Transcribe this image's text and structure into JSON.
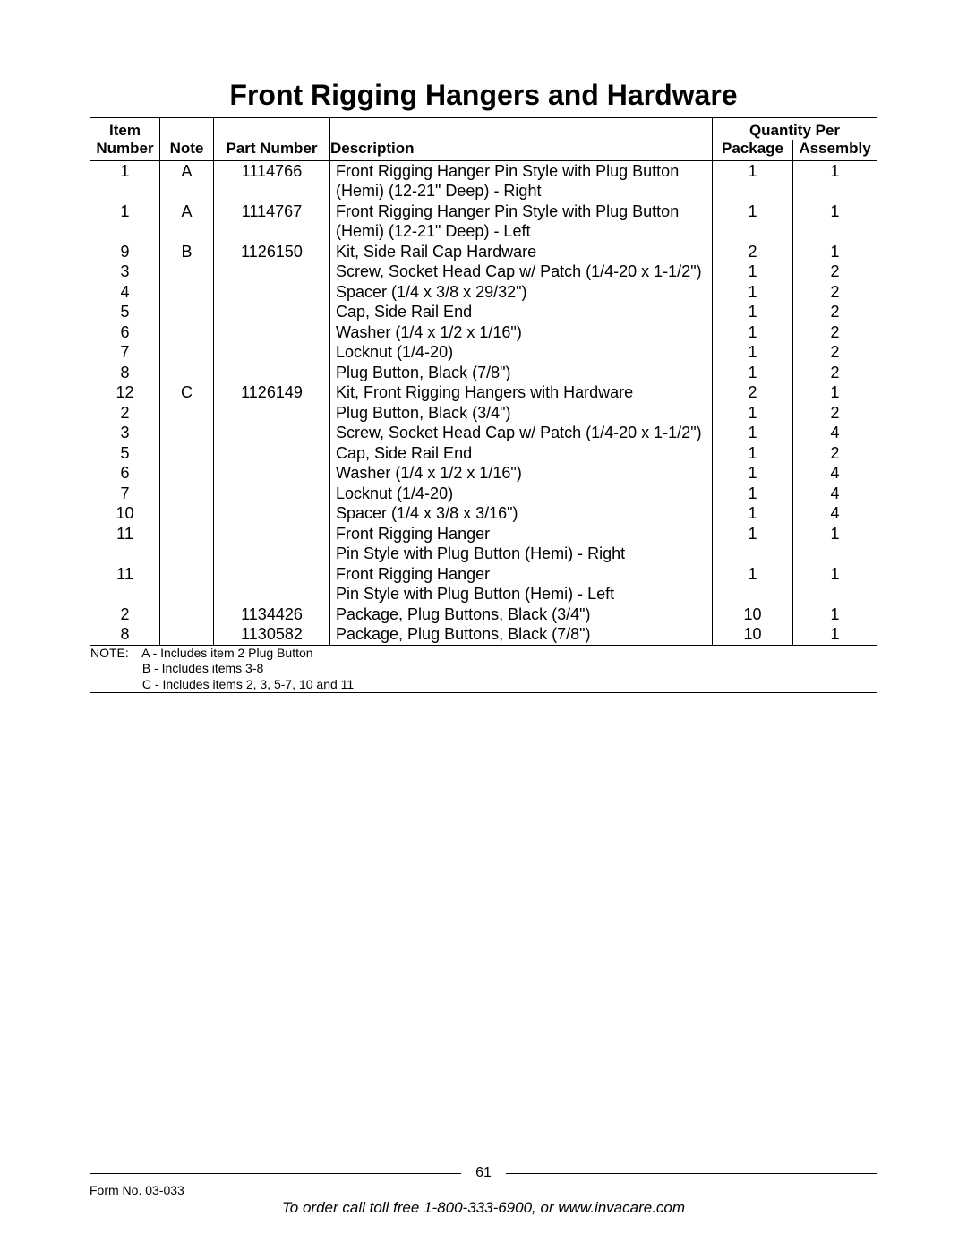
{
  "title": "Front Rigging Hangers and Hardware",
  "headers": {
    "item_line1": "Item",
    "item_line2": "Number",
    "note": "Note",
    "part": "Part Number",
    "desc": "Description",
    "qty": "Quantity Per",
    "pkg": "Package",
    "asm": "Assembly"
  },
  "rows": [
    {
      "item": "1",
      "note": "A",
      "part": "1114766",
      "desc": "Front Rigging Hanger Pin Style with Plug Button",
      "desc2": "(Hemi) (12-21\" Deep) - Right",
      "pkg": "1",
      "asm": "1"
    },
    {
      "item": "1",
      "note": "A",
      "part": "1114767",
      "desc": "Front Rigging Hanger Pin Style with Plug Button",
      "desc2": "(Hemi) (12-21\" Deep) - Left",
      "pkg": "1",
      "asm": "1"
    },
    {
      "item": "9",
      "note": "B",
      "part": "1126150",
      "desc": "Kit, Side Rail Cap Hardware",
      "pkg": "2",
      "asm": "1"
    },
    {
      "item": "3",
      "note": "",
      "part": "",
      "desc": "Screw, Socket Head Cap w/ Patch (1/4-20 x 1-1/2\")",
      "pkg": "1",
      "asm": "2"
    },
    {
      "item": "4",
      "note": "",
      "part": "",
      "desc": "Spacer (1/4 x 3/8 x 29/32\")",
      "pkg": "1",
      "asm": "2"
    },
    {
      "item": "5",
      "note": "",
      "part": "",
      "desc": "Cap, Side Rail End",
      "pkg": "1",
      "asm": "2"
    },
    {
      "item": "6",
      "note": "",
      "part": "",
      "desc": "Washer (1/4 x 1/2 x 1/16\")",
      "pkg": "1",
      "asm": "2"
    },
    {
      "item": "7",
      "note": "",
      "part": "",
      "desc": "Locknut (1/4-20)",
      "pkg": "1",
      "asm": "2"
    },
    {
      "item": "8",
      "note": "",
      "part": "",
      "desc": "Plug Button, Black (7/8\")",
      "pkg": "1",
      "asm": "2"
    },
    {
      "item": "12",
      "note": "C",
      "part": "1126149",
      "desc": "Kit, Front Rigging Hangers with Hardware",
      "pkg": "2",
      "asm": "1"
    },
    {
      "item": "2",
      "note": "",
      "part": "",
      "desc": "Plug Button, Black (3/4\")",
      "pkg": "1",
      "asm": "2"
    },
    {
      "item": "3",
      "note": "",
      "part": "",
      "desc": "Screw, Socket Head Cap w/ Patch (1/4-20 x 1-1/2\")",
      "pkg": "1",
      "asm": "4"
    },
    {
      "item": "5",
      "note": "",
      "part": "",
      "desc": "Cap, Side Rail End",
      "pkg": "1",
      "asm": "2"
    },
    {
      "item": "6",
      "note": "",
      "part": "",
      "desc": "Washer (1/4 x 1/2 x 1/16\")",
      "pkg": "1",
      "asm": "4"
    },
    {
      "item": "7",
      "note": "",
      "part": "",
      "desc": "Locknut (1/4-20)",
      "pkg": "1",
      "asm": "4"
    },
    {
      "item": "10",
      "note": "",
      "part": "",
      "desc": "Spacer (1/4 x 3/8 x 3/16\")",
      "pkg": "1",
      "asm": "4"
    },
    {
      "item": "11",
      "note": "",
      "part": "",
      "desc": "Front Rigging Hanger",
      "desc2": "Pin Style with Plug Button (Hemi) - Right",
      "pkg": "1",
      "asm": "1"
    },
    {
      "item": "11",
      "note": "",
      "part": "",
      "desc": "Front Rigging Hanger",
      "desc2": "Pin Style with Plug Button (Hemi) - Left",
      "pkg": "1",
      "asm": "1"
    },
    {
      "item": "2",
      "note": "",
      "part": "1134426",
      "desc": "Package, Plug Buttons, Black (3/4\")",
      "pkg": "10",
      "asm": "1"
    },
    {
      "item": "8",
      "note": "",
      "part": "1130582",
      "desc": "Package, Plug Buttons, Black (7/8\")",
      "pkg": "10",
      "asm": "1"
    }
  ],
  "notes": {
    "label": "NOTE:",
    "a": "A - Includes item 2 Plug Button",
    "b": "B - Includes items 3-8",
    "c": "C - Includes items 2, 3, 5-7, 10 and 11"
  },
  "footer": {
    "page": "61",
    "form": "Form No. 03-033",
    "order": "To order call toll free 1-800-333-6900, or www.invacare.com"
  },
  "colors": {
    "text": "#000000",
    "bg": "#ffffff",
    "rule": "#000000"
  }
}
